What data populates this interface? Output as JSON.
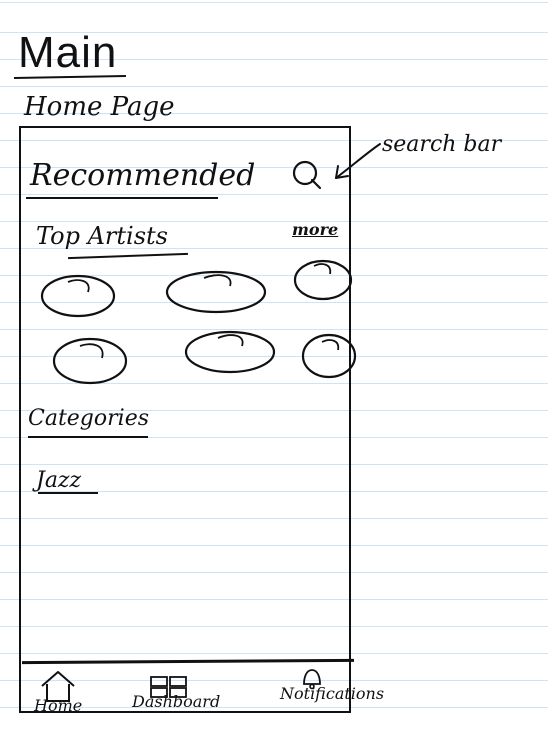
{
  "header": {
    "title": "Main",
    "subtitle": "Home Page"
  },
  "screen": {
    "recommended_heading": "Recommended",
    "search_icon": "search-icon",
    "search_annotation": "search bar",
    "top_artists": {
      "heading": "Top Artists",
      "more_label": "more",
      "artists_icon": "artist-circle-icon"
    },
    "categories": {
      "heading": "Categories",
      "items": [
        "Jazz"
      ]
    }
  },
  "bottom_nav": {
    "items": [
      {
        "label": "Home",
        "icon": "home-icon"
      },
      {
        "label": "Dashboard",
        "icon": "dashboard-icon"
      },
      {
        "label": "Notifications",
        "icon": "bell-icon"
      }
    ]
  }
}
